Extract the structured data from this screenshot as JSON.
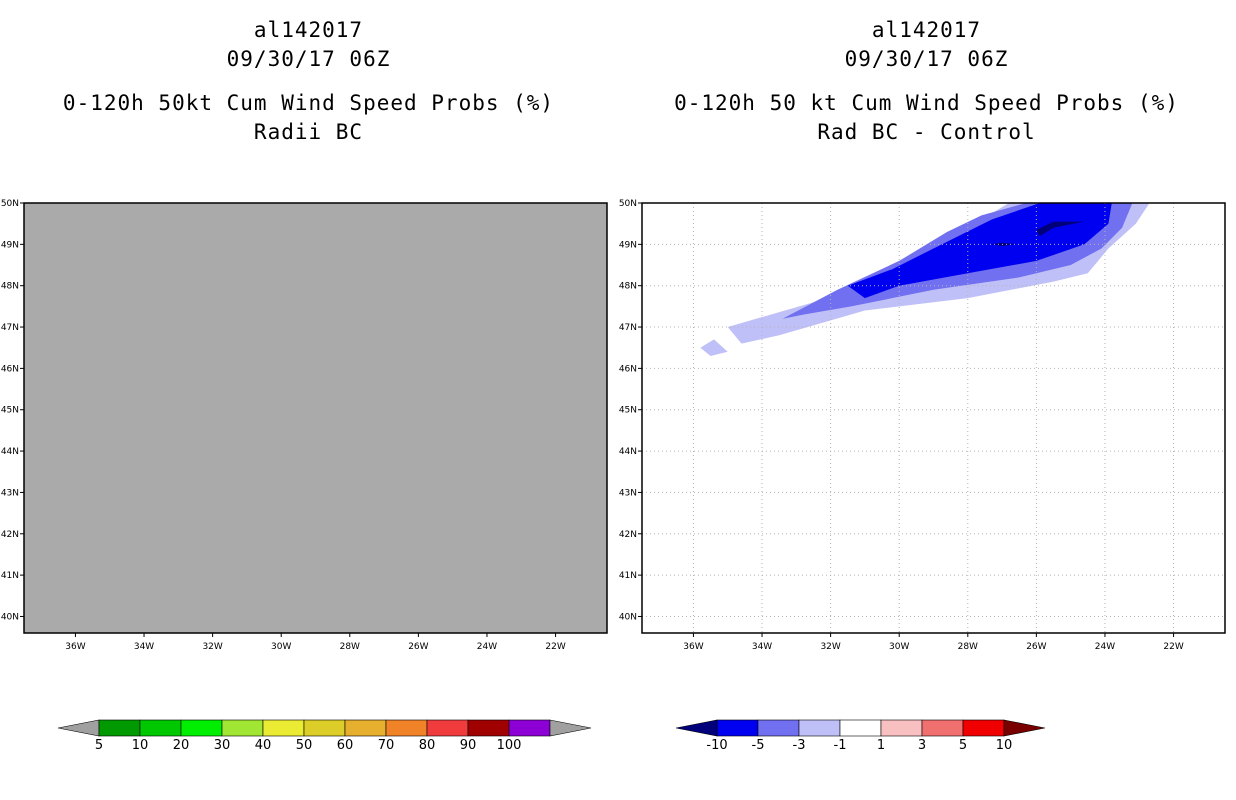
{
  "left_panel": {
    "storm_id": "al142017",
    "datetime": "09/30/17 06Z",
    "title": "0-120h 50kt Cum Wind Speed Probs (%)",
    "subtitle": "Radii BC"
  },
  "right_panel": {
    "storm_id": "al142017",
    "datetime": "09/30/17 06Z",
    "title": "0-120h 50 kt Cum Wind Speed Probs (%)",
    "subtitle": "Rad BC - Control"
  },
  "chart_data": [
    {
      "type": "contour-map",
      "panel": "left",
      "title": "0-120h 50kt Cum Wind Speed Probs (%)",
      "subtitle": "Radii BC",
      "lon_range": [
        -37.5,
        -20.5
      ],
      "lat_range": [
        39.6,
        50.0
      ],
      "x_ticks": [
        "36W",
        "34W",
        "32W",
        "30W",
        "28W",
        "26W",
        "24W",
        "22W"
      ],
      "x_tick_values": [
        -36,
        -34,
        -32,
        -30,
        -28,
        -26,
        -24,
        -22
      ],
      "y_ticks": [
        "40N",
        "41N",
        "42N",
        "43N",
        "44N",
        "45N",
        "46N",
        "47N",
        "48N",
        "49N",
        "50N"
      ],
      "y_tick_values": [
        40,
        41,
        42,
        43,
        44,
        45,
        46,
        47,
        48,
        49,
        50
      ],
      "background": "#aaaaaa",
      "grid": false,
      "colorbar": {
        "labels": [
          "5",
          "10",
          "20",
          "30",
          "40",
          "50",
          "60",
          "70",
          "80",
          "90",
          "100"
        ],
        "colors": [
          "#009a00",
          "#00c800",
          "#00ee00",
          "#a0e632",
          "#ebeb33",
          "#dccd28",
          "#e6af2d",
          "#f08228",
          "#f03c3c",
          "#a00000",
          "#8c00d6"
        ],
        "end_colors": [
          "#a0a0a0",
          "#a0a0a0"
        ]
      }
    },
    {
      "type": "contour-map",
      "panel": "right",
      "title": "0-120h 50 kt Cum Wind Speed Probs (%)",
      "subtitle": "Rad BC - Control",
      "lon_range": [
        -37.5,
        -20.5
      ],
      "lat_range": [
        39.6,
        50.0
      ],
      "x_ticks": [
        "36W",
        "34W",
        "32W",
        "30W",
        "28W",
        "26W",
        "24W",
        "22W"
      ],
      "x_tick_values": [
        -36,
        -34,
        -32,
        -30,
        -28,
        -26,
        -24,
        -22
      ],
      "y_ticks": [
        "40N",
        "41N",
        "42N",
        "43N",
        "44N",
        "45N",
        "46N",
        "47N",
        "48N",
        "49N",
        "50N"
      ],
      "y_tick_values": [
        40,
        41,
        42,
        43,
        44,
        45,
        46,
        47,
        48,
        49,
        50
      ],
      "background": "#ffffff",
      "grid": true,
      "contours": [
        {
          "level": "-3 to -1",
          "color": "#c0c0f8",
          "lonlat": [
            [
              -35,
              47.0
            ],
            [
              -32.5,
              47.6
            ],
            [
              -31,
              48.2
            ],
            [
              -29,
              48.9
            ],
            [
              -27.6,
              49.6
            ],
            [
              -26.8,
              50.0
            ],
            [
              -22.7,
              50.0
            ],
            [
              -23.1,
              49.5
            ],
            [
              -23.9,
              48.9
            ],
            [
              -24.5,
              48.3
            ],
            [
              -25.5,
              48.1
            ],
            [
              -28,
              47.7
            ],
            [
              -31,
              47.4
            ],
            [
              -33.5,
              46.8
            ],
            [
              -34.6,
              46.6
            ]
          ]
        },
        {
          "level": "-3 to -1 (isolated)",
          "color": "#c0c0f8",
          "lonlat": [
            [
              -35.8,
              46.5
            ],
            [
              -35.4,
              46.7
            ],
            [
              -35.0,
              46.4
            ],
            [
              -35.5,
              46.3
            ]
          ]
        },
        {
          "level": "-5 to -3",
          "color": "#7070f0",
          "lonlat": [
            [
              -33.4,
              47.2
            ],
            [
              -31.8,
              47.9
            ],
            [
              -30.0,
              48.6
            ],
            [
              -28.6,
              49.3
            ],
            [
              -27.6,
              49.7
            ],
            [
              -26.3,
              50.0
            ],
            [
              -23.2,
              50.0
            ],
            [
              -23.5,
              49.4
            ],
            [
              -24.1,
              48.9
            ],
            [
              -25.0,
              48.5
            ],
            [
              -26.5,
              48.2
            ],
            [
              -29,
              47.9
            ],
            [
              -31.4,
              47.5
            ],
            [
              -32.8,
              47.3
            ]
          ]
        },
        {
          "level": "-10 to -5",
          "color": "#0000f0",
          "lonlat": [
            [
              -31.5,
              48.0
            ],
            [
              -30.2,
              48.4
            ],
            [
              -29,
              48.9
            ],
            [
              -27.3,
              49.6
            ],
            [
              -25.9,
              50.0
            ],
            [
              -23.8,
              50.0
            ],
            [
              -23.9,
              49.5
            ],
            [
              -24.6,
              49.0
            ],
            [
              -26,
              48.6
            ],
            [
              -28,
              48.3
            ],
            [
              -30,
              48.0
            ],
            [
              -31,
              47.7
            ]
          ]
        },
        {
          "level": "< -10",
          "color": "#00007a",
          "lonlat": [
            [
              -26.0,
              49.35
            ],
            [
              -25.5,
              49.55
            ],
            [
              -24.6,
              49.55
            ],
            [
              -25.5,
              49.4
            ],
            [
              -25.9,
              49.2
            ]
          ]
        },
        {
          "level": "< -10 (small)",
          "color": "#00007a",
          "lonlat": [
            [
              -27.3,
              49.0
            ],
            [
              -27.0,
              49.04
            ],
            [
              -26.6,
              49.0
            ],
            [
              -27.0,
              48.96
            ]
          ]
        }
      ],
      "colorbar": {
        "labels": [
          "-10",
          "-5",
          "-3",
          "-1",
          "1",
          "3",
          "5",
          "10"
        ],
        "colors": [
          "#0000f0",
          "#7070f0",
          "#c0c0f8",
          "#ffffff",
          "#f8c0c0",
          "#f07070",
          "#f00000"
        ],
        "end_colors": [
          "#00007a",
          "#7a0000"
        ]
      }
    }
  ]
}
